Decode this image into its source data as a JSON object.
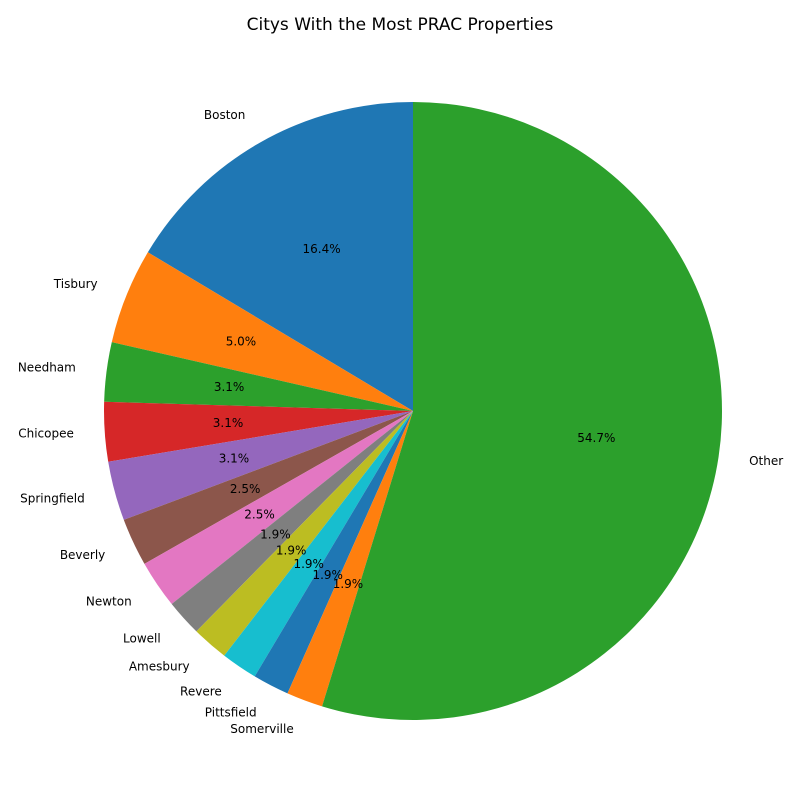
{
  "chart_data": {
    "type": "pie",
    "title": "Citys With the Most PRAC Properties",
    "start_angle_deg": 90,
    "direction": "counterclockwise",
    "slices": [
      {
        "label": "Boston",
        "value": 16.4,
        "pct_text": "16.4%",
        "color": "#1f77b4"
      },
      {
        "label": "Tisbury",
        "value": 5.0,
        "pct_text": "5.0%",
        "color": "#ff7f0e"
      },
      {
        "label": "Needham",
        "value": 3.1,
        "pct_text": "3.1%",
        "color": "#2ca02c"
      },
      {
        "label": "Chicopee",
        "value": 3.1,
        "pct_text": "3.1%",
        "color": "#d62728"
      },
      {
        "label": "Springfield",
        "value": 3.1,
        "pct_text": "3.1%",
        "color": "#9467bd"
      },
      {
        "label": "Beverly",
        "value": 2.5,
        "pct_text": "2.5%",
        "color": "#8c564b"
      },
      {
        "label": "Newton",
        "value": 2.5,
        "pct_text": "2.5%",
        "color": "#e377c2"
      },
      {
        "label": "Lowell",
        "value": 1.9,
        "pct_text": "1.9%",
        "color": "#7f7f7f"
      },
      {
        "label": "Amesbury",
        "value": 1.9,
        "pct_text": "1.9%",
        "color": "#bcbd22"
      },
      {
        "label": "Revere",
        "value": 1.9,
        "pct_text": "1.9%",
        "color": "#17becf"
      },
      {
        "label": "Pittsfield",
        "value": 1.9,
        "pct_text": "1.9%",
        "color": "#1f77b4"
      },
      {
        "label": "Somerville",
        "value": 1.9,
        "pct_text": "1.9%",
        "color": "#ff7f0e"
      },
      {
        "label": "Other",
        "value": 54.7,
        "pct_text": "54.7%",
        "color": "#2ca02c"
      }
    ]
  }
}
